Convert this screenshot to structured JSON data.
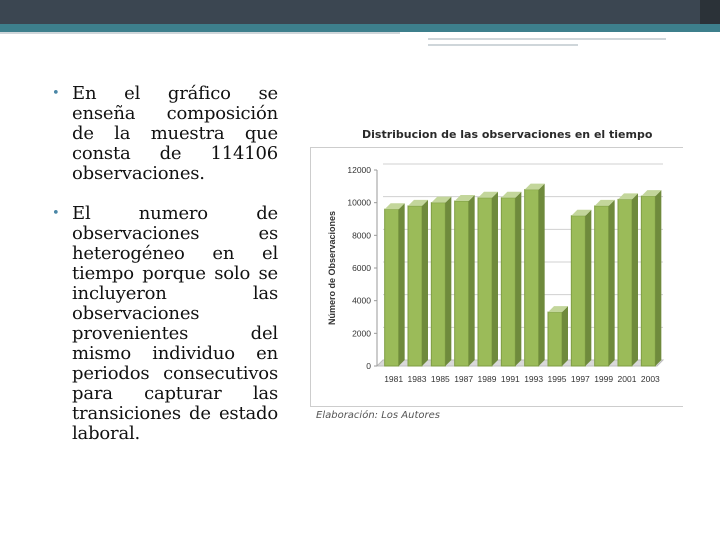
{
  "slide": {
    "bullets": [
      {
        "text": "En el gráfico se enseña composición de la muestra que consta de 114106 observaciones."
      },
      {
        "text": "El numero de observaciones es heterogéneo en el tiempo porque solo se incluyeron las observaciones provenientes del mismo individuo en periodos consecutivos para capturar las transiciones de estado laboral."
      }
    ],
    "bullet_glyph": "•",
    "credit": "Elaboración: Los Autores",
    "colors": {
      "header": "#3b4651",
      "accent": "#3d7f8c",
      "bar": "#9bbb59",
      "bullet": "#4a86a6"
    }
  },
  "chart_data": {
    "type": "bar",
    "title": "Distribucion de las observaciones en el tiempo",
    "xlabel": "",
    "ylabel": "Número de Observaciones",
    "categories": [
      "1981",
      "1983",
      "1985",
      "1987",
      "1989",
      "1991",
      "1993",
      "1995",
      "1997",
      "1999",
      "2001",
      "2003"
    ],
    "values": [
      9600,
      9800,
      10000,
      10100,
      10300,
      10300,
      10800,
      3300,
      9200,
      9800,
      10200,
      10400
    ],
    "ylim": [
      0,
      12000
    ],
    "yticks": [
      0,
      2000,
      4000,
      6000,
      8000,
      10000,
      12000
    ],
    "grid": true,
    "style": "3d"
  }
}
